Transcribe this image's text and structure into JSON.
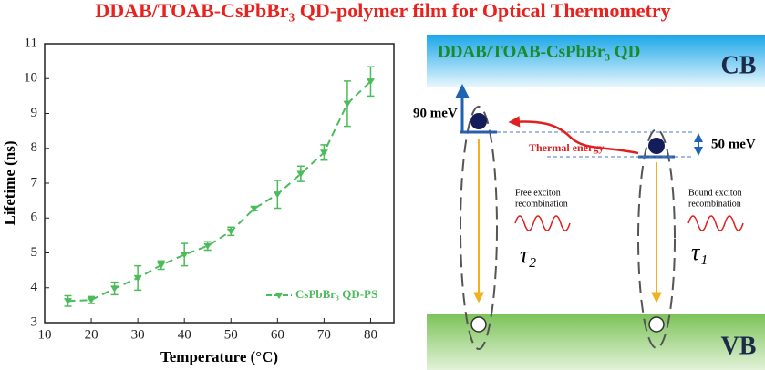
{
  "header": {
    "title": "DDAB/TOAB-CsPbBr₃ QD-polymer film for Optical Thermometry"
  },
  "chart_data": {
    "type": "line",
    "xlabel": "Temperature (°C)",
    "ylabel": "Lifetime (ns)",
    "x": [
      15,
      20,
      25,
      30,
      35,
      40,
      45,
      50,
      55,
      60,
      65,
      70,
      75,
      80
    ],
    "series": [
      {
        "name": "CsPbBr₃ QD-PS",
        "color": "#4cbb5c",
        "values": [
          3.62,
          3.65,
          3.98,
          4.28,
          4.65,
          4.95,
          5.2,
          5.62,
          6.27,
          6.68,
          7.27,
          7.88,
          9.28,
          9.92
        ],
        "errors": [
          0.15,
          0.1,
          0.18,
          0.35,
          0.12,
          0.32,
          0.12,
          0.12,
          0.05,
          0.4,
          0.22,
          0.22,
          0.65,
          0.42
        ]
      }
    ],
    "xlim": [
      10,
      85
    ],
    "ylim": [
      3,
      11
    ],
    "xticks": [
      10,
      20,
      30,
      40,
      50,
      60,
      70,
      80
    ],
    "yticks": [
      3,
      4,
      5,
      6,
      7,
      8,
      9,
      10,
      11
    ],
    "legend": "lower-right",
    "grid": false
  },
  "diagram": {
    "material": "DDAB/TOAB-CsPbBr₃ QD",
    "cb": "CB",
    "vb": "VB",
    "left_gap": "90 meV",
    "right_gap": "50 meV",
    "thermal": "Thermal energy",
    "free_label": [
      "Free exciton",
      "recombination"
    ],
    "bound_label": [
      "Bound exciton",
      "recombination"
    ],
    "tau_left": "τ₂",
    "tau_right": "τ₁"
  }
}
